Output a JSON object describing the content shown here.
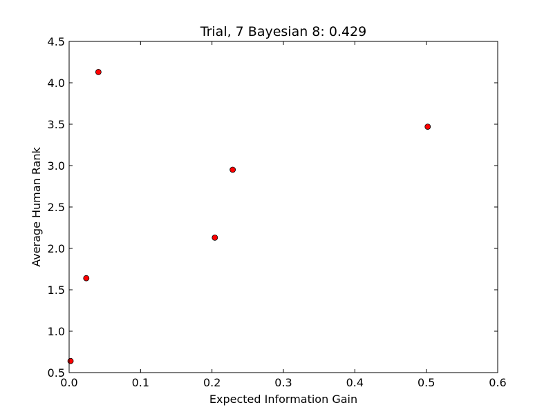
{
  "chart_data": {
    "type": "scatter",
    "title": "Trial, 7 Bayesian 8: 0.429",
    "xlabel": "Expected Information Gain",
    "ylabel": "Average Human Rank",
    "xlim": [
      0.0,
      0.6
    ],
    "ylim": [
      0.5,
      4.5
    ],
    "xticks": [
      "0.0",
      "0.1",
      "0.2",
      "0.3",
      "0.4",
      "0.5",
      "0.6"
    ],
    "yticks": [
      "0.5",
      "1.0",
      "1.5",
      "2.0",
      "2.5",
      "3.0",
      "3.5",
      "4.0",
      "4.5"
    ],
    "grid": false,
    "legend": "none",
    "marker_color": "#ff0000",
    "marker_edge_color": "#000000",
    "points": [
      {
        "x": 0.002,
        "y": 0.64
      },
      {
        "x": 0.024,
        "y": 1.64
      },
      {
        "x": 0.041,
        "y": 4.13
      },
      {
        "x": 0.204,
        "y": 2.13
      },
      {
        "x": 0.229,
        "y": 2.95
      },
      {
        "x": 0.502,
        "y": 3.47
      }
    ]
  }
}
